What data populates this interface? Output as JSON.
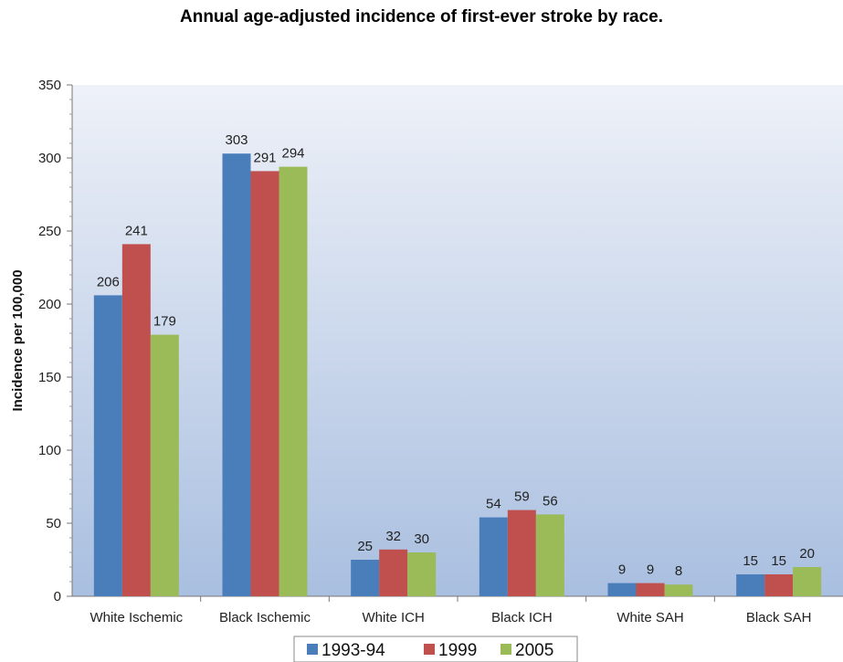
{
  "chart_data": {
    "type": "bar",
    "title": "Annual age-adjusted incidence of first-ever stroke by race.",
    "ylabel": "Incidence per 100,000",
    "xlabel": "",
    "ylim": [
      0,
      350
    ],
    "yticks": [
      0,
      50,
      100,
      150,
      200,
      250,
      300,
      350
    ],
    "grid": false,
    "legend_position": "bottom",
    "categories": [
      "White Ischemic",
      "Black Ischemic",
      "White ICH",
      "Black ICH",
      "White SAH",
      "Black SAH"
    ],
    "series": [
      {
        "name": "1993-94",
        "color": "#4a7ebb",
        "values": [
          206,
          303,
          25,
          54,
          9,
          15
        ]
      },
      {
        "name": "1999",
        "color": "#c0504d",
        "values": [
          241,
          291,
          32,
          59,
          9,
          15
        ]
      },
      {
        "name": "2005",
        "color": "#9bbb59",
        "values": [
          179,
          294,
          30,
          56,
          8,
          20
        ]
      }
    ]
  }
}
